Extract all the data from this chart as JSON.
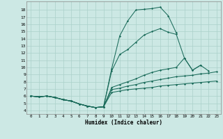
{
  "title": "",
  "xlabel": "Humidex (Indice chaleur)",
  "bg_color": "#cce8e4",
  "grid_color": "#aad0ca",
  "line_color": "#1a6b5a",
  "xlim": [
    -0.5,
    23.5
  ],
  "ylim": [
    3.5,
    19.2
  ],
  "xticks": [
    0,
    1,
    2,
    3,
    4,
    5,
    6,
    7,
    8,
    9,
    10,
    11,
    12,
    13,
    14,
    15,
    16,
    17,
    18,
    19,
    20,
    21,
    22,
    23
  ],
  "yticks": [
    4,
    5,
    6,
    7,
    8,
    9,
    10,
    11,
    12,
    13,
    14,
    15,
    16,
    17,
    18
  ],
  "lines": [
    [
      6.0,
      5.9,
      6.0,
      5.8,
      5.5,
      5.3,
      4.9,
      4.6,
      4.4,
      4.5,
      9.8,
      14.4,
      16.5,
      18.0,
      18.1,
      18.2,
      18.4,
      17.2,
      14.8,
      null,
      null,
      null,
      null,
      null
    ],
    [
      6.0,
      5.9,
      6.0,
      5.8,
      5.5,
      5.3,
      4.9,
      4.6,
      4.4,
      4.5,
      9.5,
      11.8,
      12.5,
      13.5,
      14.5,
      15.0,
      15.4,
      14.9,
      14.6,
      11.3,
      9.6,
      10.3,
      null,
      null
    ],
    [
      6.0,
      5.9,
      6.0,
      5.8,
      5.5,
      5.3,
      4.9,
      4.6,
      4.4,
      4.5,
      7.2,
      7.6,
      8.0,
      8.4,
      8.9,
      9.3,
      9.6,
      9.8,
      10.0,
      11.3,
      9.6,
      10.3,
      9.5,
      null
    ],
    [
      6.0,
      5.9,
      6.0,
      5.8,
      5.5,
      5.3,
      4.9,
      4.6,
      4.4,
      4.5,
      6.9,
      7.1,
      7.4,
      7.6,
      7.9,
      8.1,
      8.3,
      8.5,
      8.7,
      8.8,
      8.9,
      9.1,
      9.2,
      9.4
    ],
    [
      6.0,
      5.9,
      6.0,
      5.8,
      5.5,
      5.3,
      4.9,
      4.6,
      4.4,
      4.5,
      6.5,
      6.7,
      6.9,
      7.0,
      7.1,
      7.2,
      7.4,
      7.5,
      7.6,
      7.7,
      7.8,
      7.9,
      8.0,
      8.1
    ]
  ]
}
